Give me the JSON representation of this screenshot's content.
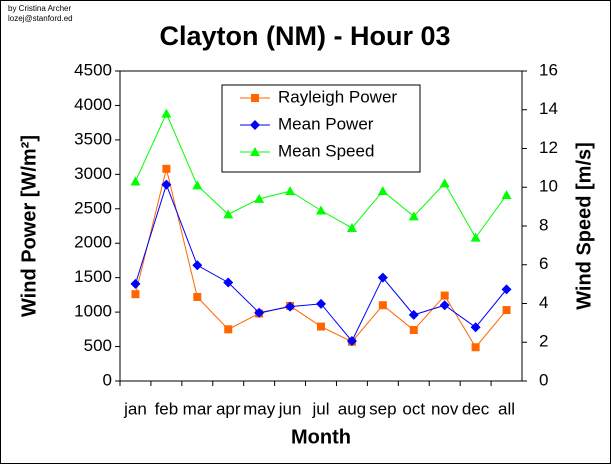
{
  "chart_data": {
    "type": "line",
    "title": "Clayton (NM) - Hour 03",
    "credit": [
      "by Cristina Archer",
      "lozej@stanford.ed"
    ],
    "xlabel": "Month",
    "ylabel": "Wind Power [W/m²]",
    "y2label": "Wind Speed [m/s]",
    "categories": [
      "jan",
      "feb",
      "mar",
      "apr",
      "may",
      "jun",
      "jul",
      "aug",
      "sep",
      "oct",
      "nov",
      "dec",
      "all"
    ],
    "series": [
      {
        "name": "Rayleigh Power",
        "color": "#ff6600",
        "marker": "square",
        "values": [
          1260,
          3080,
          1220,
          750,
          980,
          1090,
          790,
          570,
          1100,
          740,
          1240,
          490,
          1030
        ]
      },
      {
        "name": "Mean Power",
        "color": "#0000ff",
        "marker": "diamond",
        "values": [
          1410,
          2850,
          1680,
          1430,
          990,
          1080,
          1120,
          580,
          1500,
          960,
          1100,
          780,
          1330
        ]
      },
      {
        "name": "Mean Speed",
        "color": "#00ff00",
        "marker": "triangle",
        "axis": "y2",
        "values": [
          10.3,
          13.8,
          10.1,
          8.6,
          9.4,
          9.8,
          8.8,
          7.9,
          9.8,
          8.5,
          10.2,
          7.4,
          9.6
        ]
      }
    ],
    "ylim": [
      0,
      4500
    ],
    "yticks": [
      0,
      500,
      1000,
      1500,
      2000,
      2500,
      3000,
      3500,
      4000,
      4500
    ],
    "y2lim": [
      0,
      16
    ],
    "y2ticks": [
      0,
      2,
      4,
      6,
      8,
      10,
      12,
      14,
      16
    ]
  }
}
